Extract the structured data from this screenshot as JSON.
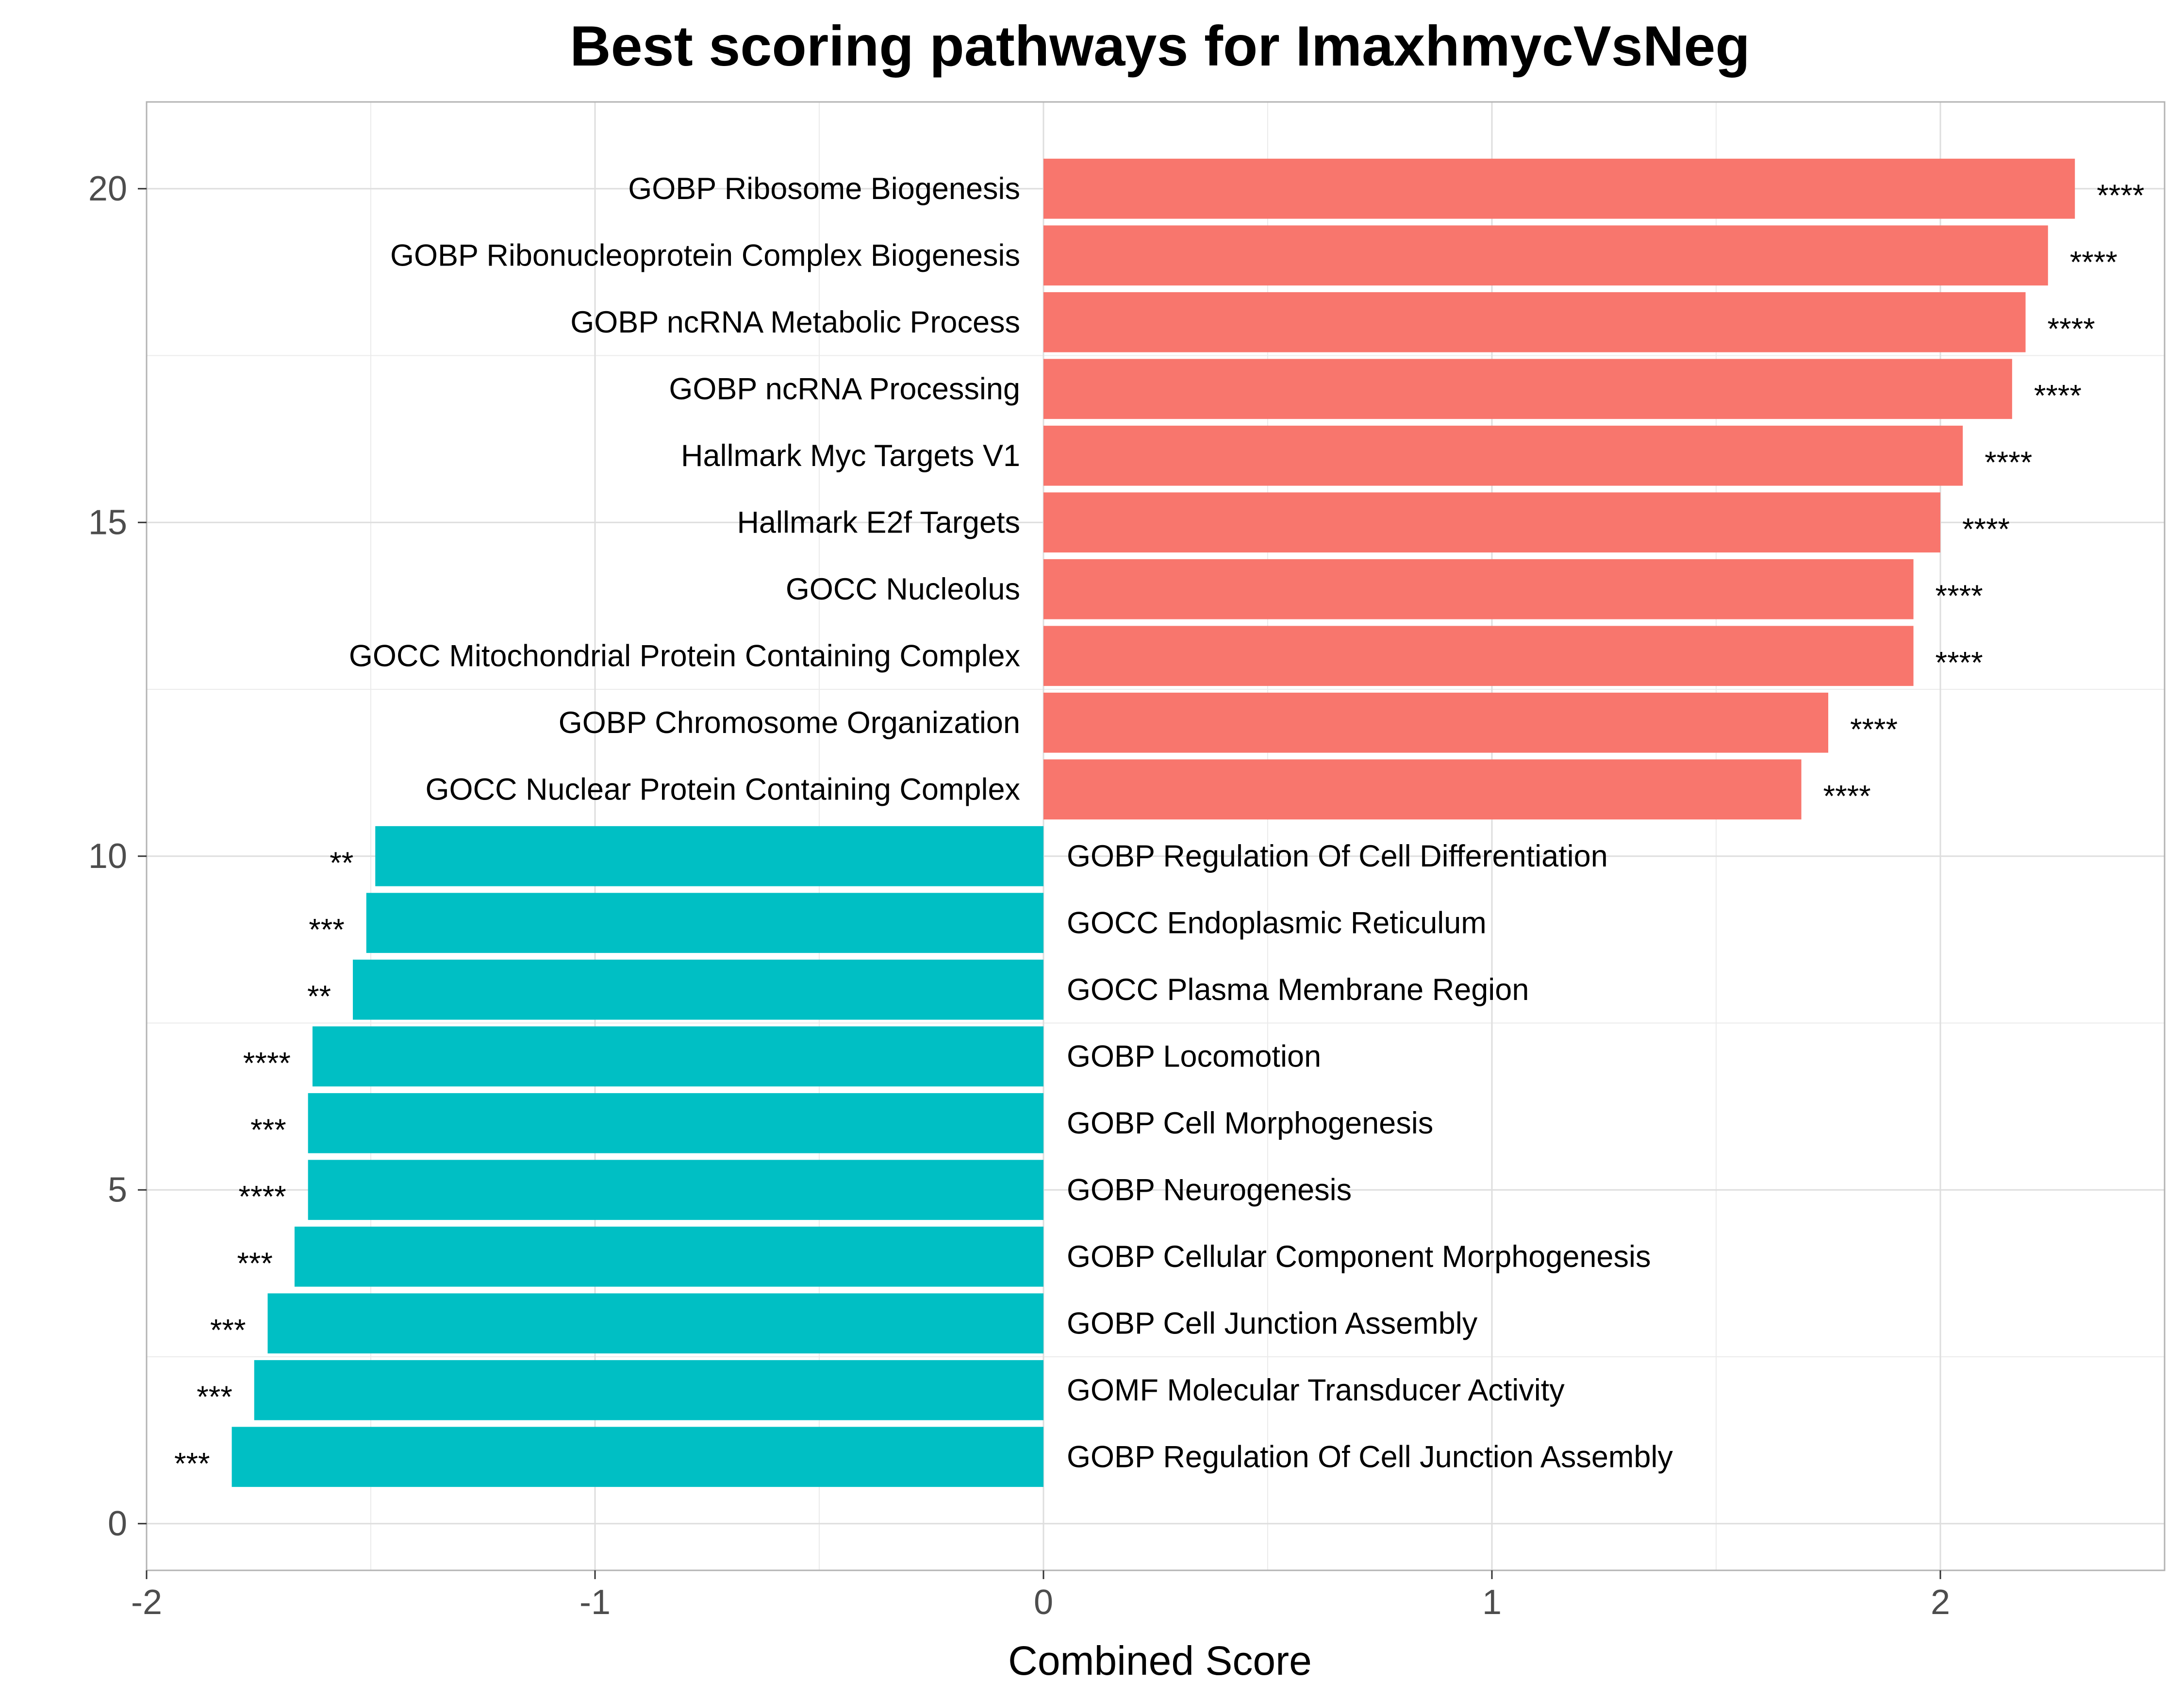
{
  "chart_data": {
    "type": "bar",
    "orientation": "horizontal",
    "title": "Best scoring pathways for ImaxhmycVsNeg",
    "xlabel": "Combined Score",
    "ylabel": "",
    "xlim": [
      -2,
      2.5
    ],
    "ylim": [
      0,
      21
    ],
    "x_ticks": [
      "-2",
      "-1",
      "0",
      "1",
      "2"
    ],
    "y_ticks": [
      "0",
      "5",
      "10",
      "15",
      "20"
    ],
    "grid": true,
    "colors": {
      "positive": "#F8766D",
      "negative": "#00BFC4",
      "grid": "#DEDEDE",
      "border": "#B3B3B3"
    },
    "bars": [
      {
        "y": 20,
        "label": "GOBP Ribosome Biogenesis",
        "value": 2.3,
        "sig": "****"
      },
      {
        "y": 19,
        "label": "GOBP Ribonucleoprotein Complex Biogenesis",
        "value": 2.24,
        "sig": "****"
      },
      {
        "y": 18,
        "label": "GOBP ncRNA Metabolic Process",
        "value": 2.19,
        "sig": "****"
      },
      {
        "y": 17,
        "label": "GOBP ncRNA Processing",
        "value": 2.16,
        "sig": "****"
      },
      {
        "y": 16,
        "label": "Hallmark Myc Targets V1",
        "value": 2.05,
        "sig": "****"
      },
      {
        "y": 15,
        "label": "Hallmark E2f Targets",
        "value": 2.0,
        "sig": "****"
      },
      {
        "y": 14,
        "label": "GOCC Nucleolus",
        "value": 1.94,
        "sig": "****"
      },
      {
        "y": 13,
        "label": "GOCC Mitochondrial Protein Containing Complex",
        "value": 1.94,
        "sig": "****"
      },
      {
        "y": 12,
        "label": "GOBP Chromosome Organization",
        "value": 1.75,
        "sig": "****"
      },
      {
        "y": 11,
        "label": "GOCC Nuclear Protein Containing Complex",
        "value": 1.69,
        "sig": "****"
      },
      {
        "y": 10,
        "label": "GOBP Regulation Of Cell Differentiation",
        "value": -1.49,
        "sig": "**"
      },
      {
        "y": 9,
        "label": "GOCC Endoplasmic Reticulum",
        "value": -1.51,
        "sig": "***"
      },
      {
        "y": 8,
        "label": "GOCC Plasma Membrane Region",
        "value": -1.54,
        "sig": "**"
      },
      {
        "y": 7,
        "label": "GOBP Locomotion",
        "value": -1.63,
        "sig": "****"
      },
      {
        "y": 6,
        "label": "GOBP Cell Morphogenesis",
        "value": -1.64,
        "sig": "***"
      },
      {
        "y": 5,
        "label": "GOBP Neurogenesis",
        "value": -1.64,
        "sig": "****"
      },
      {
        "y": 4,
        "label": "GOBP Cellular Component Morphogenesis",
        "value": -1.67,
        "sig": "***"
      },
      {
        "y": 3,
        "label": "GOBP Cell Junction Assembly",
        "value": -1.73,
        "sig": "***"
      },
      {
        "y": 2,
        "label": "GOMF Molecular Transducer Activity",
        "value": -1.76,
        "sig": "***"
      },
      {
        "y": 1,
        "label": "GOBP Regulation Of Cell Junction Assembly",
        "value": -1.81,
        "sig": "***"
      }
    ]
  }
}
